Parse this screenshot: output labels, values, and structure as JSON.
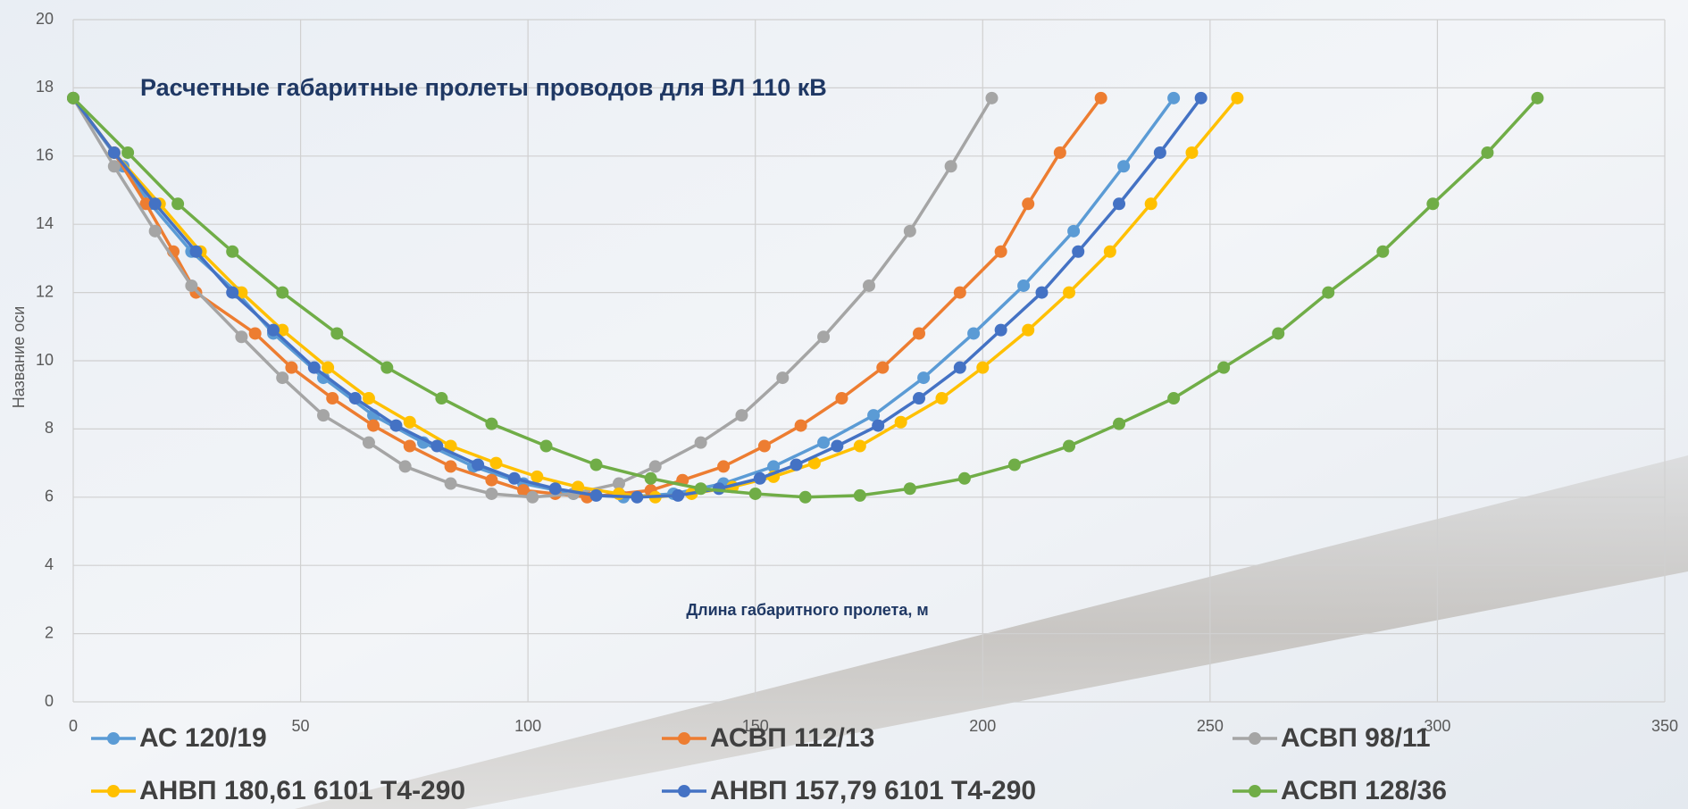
{
  "chart_data": {
    "type": "line",
    "title": "Расчетные габаритные пролеты проводов для ВЛ 110 кВ",
    "x_label": "Длина габаритного пролета, м",
    "y_label": "Название оси",
    "xlim": [
      0,
      350
    ],
    "xticks": [
      0,
      50,
      100,
      150,
      200,
      250,
      300,
      350
    ],
    "ylim": [
      0,
      20
    ],
    "yticks": [
      0,
      2,
      4,
      6,
      8,
      10,
      12,
      14,
      16,
      18,
      20
    ],
    "grid": true,
    "series": [
      {
        "name": "АС 120/19",
        "color": "#5b9bd5",
        "x": [
          0,
          11,
          17,
          26,
          36,
          44,
          55,
          66,
          77,
          88,
          99,
          110,
          121,
          132,
          143,
          154,
          165,
          176,
          187,
          198,
          209,
          220,
          231,
          242
        ],
        "values": [
          17.7,
          15.7,
          14.6,
          13.2,
          12.0,
          10.8,
          9.5,
          8.4,
          7.6,
          6.9,
          6.4,
          6.1,
          6.0,
          6.1,
          6.4,
          6.9,
          7.6,
          8.4,
          9.5,
          10.8,
          12.2,
          13.8,
          15.7,
          17.7
        ]
      },
      {
        "name": "АСВП 112/13",
        "color": "#ed7d31",
        "x": [
          0,
          9,
          16,
          22,
          27,
          40,
          48,
          57,
          66,
          74,
          83,
          92,
          99,
          106,
          113,
          120,
          127,
          134,
          143,
          152,
          160,
          169,
          178,
          186,
          195,
          204,
          210,
          217,
          226
        ],
        "values": [
          17.7,
          16.1,
          14.6,
          13.2,
          12.0,
          10.8,
          9.8,
          8.9,
          8.1,
          7.5,
          6.9,
          6.5,
          6.2,
          6.1,
          6.0,
          6.1,
          6.2,
          6.5,
          6.9,
          7.5,
          8.1,
          8.9,
          9.8,
          10.8,
          12.0,
          13.2,
          14.6,
          16.1,
          17.7
        ]
      },
      {
        "name": "АСВП 98/11",
        "color": "#a5a5a5",
        "x": [
          0,
          9,
          18,
          26,
          37,
          46,
          55,
          65,
          73,
          83,
          92,
          101,
          110,
          120,
          128,
          138,
          147,
          156,
          165,
          175,
          184,
          193,
          202
        ],
        "values": [
          17.7,
          15.7,
          13.8,
          12.2,
          10.7,
          9.5,
          8.4,
          7.6,
          6.9,
          6.4,
          6.1,
          6.0,
          6.1,
          6.4,
          6.9,
          7.6,
          8.4,
          9.5,
          10.7,
          12.2,
          13.8,
          15.7,
          17.7
        ]
      },
      {
        "name": "АНВП 180,61 6101 Т4-290",
        "color": "#ffc000",
        "x": [
          0,
          9,
          19,
          28,
          37,
          46,
          56,
          65,
          74,
          83,
          93,
          102,
          111,
          120,
          128,
          136,
          145,
          154,
          163,
          173,
          182,
          191,
          200,
          210,
          219,
          228,
          237,
          246,
          256
        ],
        "values": [
          17.7,
          16.1,
          14.6,
          13.2,
          12.0,
          10.9,
          9.8,
          8.9,
          8.2,
          7.5,
          7.0,
          6.6,
          6.3,
          6.1,
          6.0,
          6.1,
          6.3,
          6.6,
          7.0,
          7.5,
          8.2,
          8.9,
          9.8,
          10.9,
          12.0,
          13.2,
          14.6,
          16.1,
          17.7
        ]
      },
      {
        "name": "АНВП 157,79 6101 Т4-290",
        "color": "#4472c4",
        "x": [
          0,
          9,
          18,
          27,
          35,
          44,
          53,
          62,
          71,
          80,
          89,
          97,
          106,
          115,
          124,
          133,
          142,
          151,
          159,
          168,
          177,
          186,
          195,
          204,
          213,
          221,
          230,
          239,
          248
        ],
        "values": [
          17.7,
          16.1,
          14.6,
          13.2,
          12.0,
          10.9,
          9.8,
          8.9,
          8.1,
          7.5,
          6.95,
          6.55,
          6.25,
          6.05,
          6.0,
          6.05,
          6.25,
          6.55,
          6.95,
          7.5,
          8.1,
          8.9,
          9.8,
          10.9,
          12.0,
          13.2,
          14.6,
          16.1,
          17.7
        ]
      },
      {
        "name": "АСВП 128/36",
        "color": "#70ad47",
        "x": [
          0,
          12,
          23,
          35,
          46,
          58,
          69,
          81,
          92,
          104,
          115,
          127,
          138,
          150,
          161,
          173,
          184,
          196,
          207,
          219,
          230,
          242,
          253,
          265,
          276,
          288,
          299,
          311,
          322
        ],
        "values": [
          17.7,
          16.1,
          14.6,
          13.2,
          12.0,
          10.8,
          9.8,
          8.9,
          8.15,
          7.5,
          6.95,
          6.55,
          6.25,
          6.1,
          6.0,
          6.05,
          6.25,
          6.55,
          6.95,
          7.5,
          8.15,
          8.9,
          9.8,
          10.8,
          12.0,
          13.2,
          14.6,
          16.1,
          17.7
        ]
      }
    ]
  }
}
